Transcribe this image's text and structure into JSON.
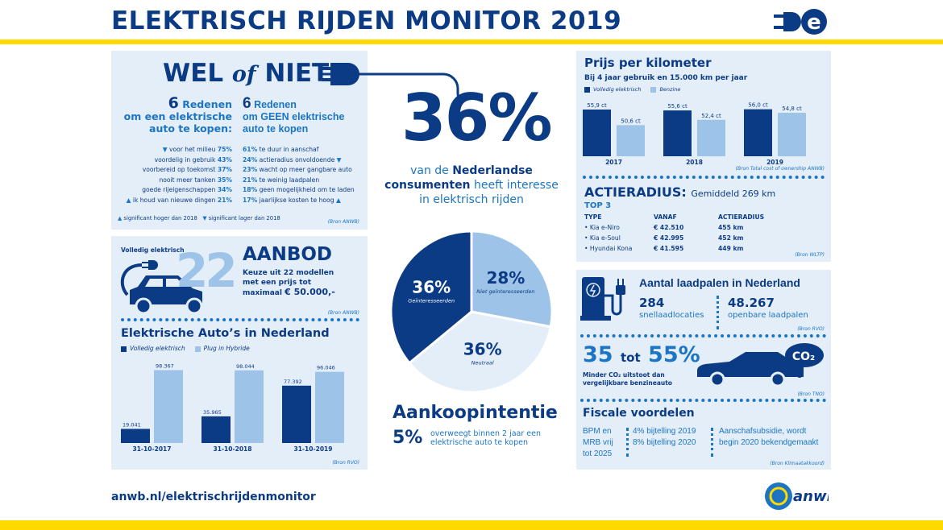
{
  "header": {
    "title": "ELEKTRISCH RIJDEN MONITOR 2019",
    "logo": "plug-e-logo"
  },
  "colors": {
    "navy": "#0b3b85",
    "mid_blue": "#1b75c4",
    "light_bar": "#9ec3e8",
    "panel": "#e4eef9",
    "yellow": "#ffd900"
  },
  "wel_of_niet": {
    "title_wel": "WEL",
    "title_of": "of",
    "title_niet": "NIET",
    "pro": {
      "count": "6",
      "heading1": "Redenen",
      "heading2": "om een elektrische",
      "heading3": "auto te kopen:",
      "items": [
        {
          "text": "voor het milieu",
          "pct": "75%",
          "trend": "down"
        },
        {
          "text": "voordelig in gebruik",
          "pct": "43%",
          "trend": ""
        },
        {
          "text": "voorbereid op toekomst",
          "pct": "37%",
          "trend": ""
        },
        {
          "text": "nooit meer tanken",
          "pct": "35%",
          "trend": ""
        },
        {
          "text": "goede rijeigenschappen",
          "pct": "34%",
          "trend": ""
        },
        {
          "text": "ik houd van nieuwe dingen",
          "pct": "21%",
          "trend": "up"
        }
      ]
    },
    "con": {
      "count": "6",
      "heading1": "Redenen",
      "heading2": "om GEEN elektrische",
      "heading3": "auto te kopen",
      "items": [
        {
          "pct": "61%",
          "text": "te duur in aanschaf",
          "trend": ""
        },
        {
          "pct": "24%",
          "text": "actieradius onvoldoende",
          "trend": "down"
        },
        {
          "pct": "23%",
          "text": "wacht op meer gangbare auto",
          "trend": ""
        },
        {
          "pct": "21%",
          "text": "te weinig laadpalen",
          "trend": ""
        },
        {
          "pct": "18%",
          "text": "geen mogelijkheid om te laden",
          "trend": ""
        },
        {
          "pct": "17%",
          "text": "jaarlijkse kosten te hoog",
          "trend": "up"
        }
      ]
    },
    "legend_up": "significant hoger dan 2018",
    "legend_down": "significant lager dan 2018",
    "source": "(Bron ANWB)"
  },
  "aanbod": {
    "label": "Volledig elektrisch",
    "number": "22",
    "title": "AANBOD",
    "line1": "Keuze uit 22 modellen",
    "line2": "met een prijs tot",
    "line3a": "maximaal ",
    "line3b": "€ 50.000,-",
    "source": "(Bron ANWB)"
  },
  "interest": {
    "big": "36%",
    "line1a": "van de ",
    "line1b": "Nederlandse",
    "line2a": "consumenten",
    "line2b": " heeft interesse",
    "line3": "in elektrisch rijden"
  },
  "aankoop": {
    "title": "Aankoopintentie",
    "pct": "5%",
    "line1": "overweegt binnen 2 jaar een",
    "line2": "elektrische auto te kopen"
  },
  "laadpalen": {
    "title": "Aantal laadpalen in Nederland",
    "n1": "284",
    "l1": "snellaadlocaties",
    "n2": "48.267",
    "l2": "openbare laadpalen",
    "source": "(Bron RVO)"
  },
  "co2": {
    "from": "35",
    "tot": "tot",
    "to": "55%",
    "line1": "Minder CO₂ uitstoot dan",
    "line2": "vergelijkbare benzineauto",
    "cloud": "CO₂",
    "source": "(Bron TNO)"
  },
  "fiscaal": {
    "title": "Fiscale voordelen",
    "c1": [
      "BPM en",
      "MRB vrij",
      "tot 2025"
    ],
    "c2": [
      "4% bijtelling 2019",
      "8% bijtelling 2020"
    ],
    "c3": [
      "Aanschafsubsidie, wordt",
      "begin 2020 bekendgemaakt"
    ],
    "source": "(Bron Klimaatakkoord)"
  },
  "actieradius": {
    "title": "ACTIERADIUS:",
    "avg": "Gemiddeld 269 km",
    "top": "TOP 3",
    "headers": [
      "TYPE",
      "VANAF",
      "ACTIERADIUS"
    ],
    "rows": [
      [
        "• Kia e-Niro",
        "€ 42.510",
        "455  km"
      ],
      [
        "• Kia e-Soul",
        "€ 42.995",
        "452  km"
      ],
      [
        "• Hyundai Kona",
        "€ 41.595",
        "449 km"
      ]
    ],
    "source": "(Bron WLTP)"
  },
  "footer": {
    "url": "anwb.nl/elektrischrijdenmonitor",
    "logo": "anwb"
  },
  "chart_data": [
    {
      "type": "bar",
      "title": "Prijs per kilometer",
      "subtitle": "Bij 4 jaar gebruik en 15.000 km per jaar",
      "categories": [
        "2017",
        "2018",
        "2019"
      ],
      "series": [
        {
          "name": "Volledig elektrisch",
          "values": [
            55.9,
            55.6,
            56.0
          ],
          "labels": [
            "55,9 ct",
            "55,6 ct",
            "56,0 ct"
          ]
        },
        {
          "name": "Benzine",
          "values": [
            50.6,
            52.4,
            54.8
          ],
          "labels": [
            "50,6 ct",
            "52,4 ct",
            "54,8 ct"
          ]
        }
      ],
      "ylim": [
        40,
        57
      ],
      "grid": false,
      "legend": "top-left",
      "source": "(Bron Total cost of ownership ANWB)"
    },
    {
      "type": "bar",
      "title": "Elektrische Auto’s in Nederland",
      "categories": [
        "31-10-2017",
        "31-10-2018",
        "31-10-2019"
      ],
      "series": [
        {
          "name": "Volledig elektrisch",
          "values": [
            19041,
            35965,
            77392
          ],
          "labels": [
            "19.041",
            "35.965",
            "77.392"
          ]
        },
        {
          "name": "Plug in Hybride",
          "values": [
            98367,
            98044,
            96046
          ],
          "labels": [
            "98.367",
            "98.044",
            "96.046"
          ]
        }
      ],
      "ylim": [
        0,
        100000
      ],
      "grid": false,
      "legend": "top-left",
      "source": "(Bron RVO)"
    },
    {
      "type": "pie",
      "slices": [
        {
          "label": "Niet geïnteresseerden",
          "value": 28,
          "text": "28%",
          "color": "#9ec3e8"
        },
        {
          "label": "Neutraal",
          "value": 36,
          "text": "36%",
          "color": "#e4eef9"
        },
        {
          "label": "Geïnteresseerden",
          "value": 36,
          "text": "36%",
          "color": "#0b3b85"
        }
      ]
    }
  ]
}
